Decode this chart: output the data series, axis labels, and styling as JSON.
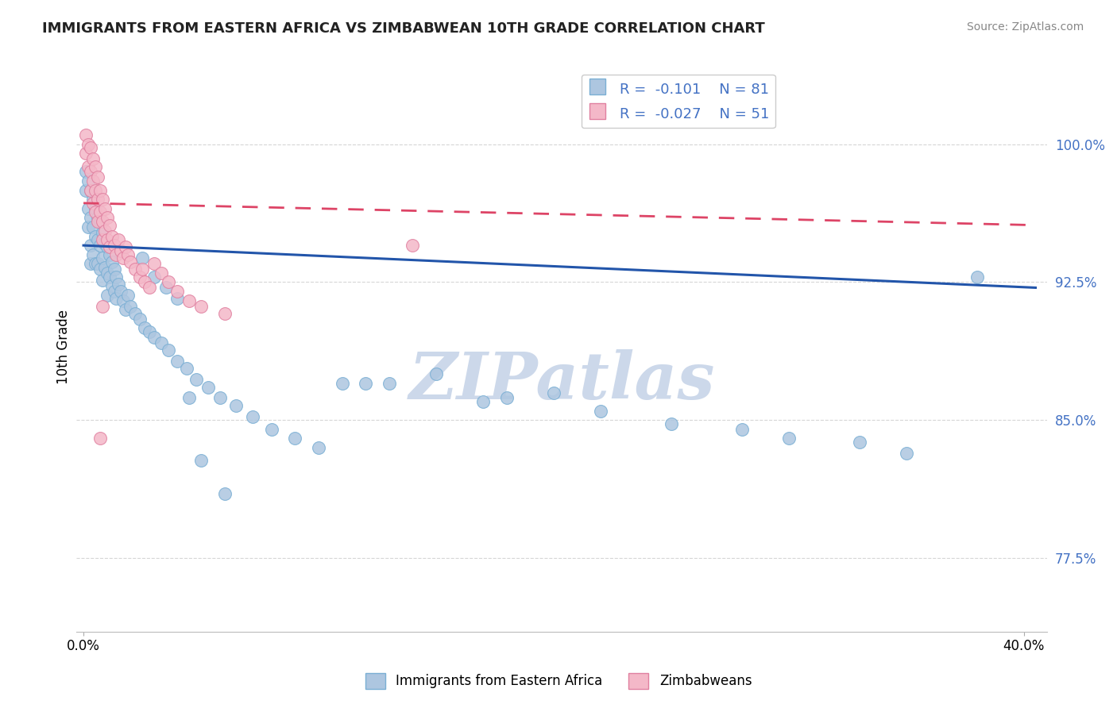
{
  "title": "IMMIGRANTS FROM EASTERN AFRICA VS ZIMBABWEAN 10TH GRADE CORRELATION CHART",
  "source": "Source: ZipAtlas.com",
  "ylabel": "10th Grade",
  "yticks": [
    0.775,
    0.85,
    0.925,
    1.0
  ],
  "ytick_labels": [
    "77.5%",
    "85.0%",
    "92.5%",
    "100.0%"
  ],
  "xlim": [
    -0.003,
    0.41
  ],
  "ylim": [
    0.735,
    1.045
  ],
  "blue_R": -0.101,
  "blue_N": 81,
  "pink_R": -0.027,
  "pink_N": 51,
  "blue_color": "#adc6e0",
  "blue_edge": "#7aafd4",
  "pink_color": "#f4b8c8",
  "pink_edge": "#e080a0",
  "blue_line_color": "#2255aa",
  "pink_line_color": "#dd4466",
  "watermark": "ZIPatlas",
  "watermark_color": "#ccd8ea",
  "legend_label_blue": "Immigrants from Eastern Africa",
  "legend_label_pink": "Zimbabweans",
  "blue_trend_x0": 0.0,
  "blue_trend_x1": 0.405,
  "blue_trend_y0": 0.945,
  "blue_trend_y1": 0.922,
  "pink_trend_x0": 0.0,
  "pink_trend_x1": 0.405,
  "pink_trend_y0": 0.968,
  "pink_trend_y1": 0.956,
  "blue_x": [
    0.001,
    0.001,
    0.002,
    0.002,
    0.002,
    0.003,
    0.003,
    0.003,
    0.003,
    0.004,
    0.004,
    0.004,
    0.005,
    0.005,
    0.005,
    0.006,
    0.006,
    0.006,
    0.007,
    0.007,
    0.007,
    0.008,
    0.008,
    0.008,
    0.009,
    0.009,
    0.01,
    0.01,
    0.01,
    0.011,
    0.011,
    0.012,
    0.012,
    0.013,
    0.013,
    0.014,
    0.014,
    0.015,
    0.016,
    0.017,
    0.018,
    0.019,
    0.02,
    0.022,
    0.024,
    0.026,
    0.028,
    0.03,
    0.033,
    0.036,
    0.04,
    0.044,
    0.048,
    0.053,
    0.058,
    0.065,
    0.072,
    0.08,
    0.09,
    0.1,
    0.11,
    0.13,
    0.15,
    0.18,
    0.22,
    0.28,
    0.33,
    0.38,
    0.025,
    0.03,
    0.035,
    0.04,
    0.045,
    0.12,
    0.2,
    0.25,
    0.3,
    0.35,
    0.17,
    0.05,
    0.06
  ],
  "blue_y": [
    0.985,
    0.975,
    0.98,
    0.965,
    0.955,
    0.975,
    0.96,
    0.945,
    0.935,
    0.97,
    0.955,
    0.94,
    0.965,
    0.95,
    0.935,
    0.96,
    0.948,
    0.935,
    0.958,
    0.945,
    0.932,
    0.952,
    0.938,
    0.926,
    0.946,
    0.933,
    0.944,
    0.93,
    0.918,
    0.94,
    0.928,
    0.936,
    0.923,
    0.932,
    0.92,
    0.928,
    0.916,
    0.924,
    0.92,
    0.915,
    0.91,
    0.918,
    0.912,
    0.908,
    0.905,
    0.9,
    0.898,
    0.895,
    0.892,
    0.888,
    0.882,
    0.878,
    0.872,
    0.868,
    0.862,
    0.858,
    0.852,
    0.845,
    0.84,
    0.835,
    0.87,
    0.87,
    0.875,
    0.862,
    0.855,
    0.845,
    0.838,
    0.928,
    0.938,
    0.928,
    0.922,
    0.916,
    0.862,
    0.87,
    0.865,
    0.848,
    0.84,
    0.832,
    0.86,
    0.828,
    0.81
  ],
  "pink_x": [
    0.001,
    0.001,
    0.002,
    0.002,
    0.003,
    0.003,
    0.003,
    0.004,
    0.004,
    0.004,
    0.005,
    0.005,
    0.005,
    0.006,
    0.006,
    0.006,
    0.007,
    0.007,
    0.008,
    0.008,
    0.008,
    0.009,
    0.009,
    0.01,
    0.01,
    0.011,
    0.011,
    0.012,
    0.013,
    0.014,
    0.015,
    0.016,
    0.017,
    0.018,
    0.019,
    0.02,
    0.022,
    0.024,
    0.026,
    0.028,
    0.03,
    0.033,
    0.036,
    0.04,
    0.045,
    0.05,
    0.06,
    0.14,
    0.025,
    0.008,
    0.007
  ],
  "pink_y": [
    1.005,
    0.995,
    1.0,
    0.988,
    0.998,
    0.985,
    0.975,
    0.992,
    0.98,
    0.968,
    0.988,
    0.975,
    0.963,
    0.982,
    0.97,
    0.958,
    0.975,
    0.963,
    0.97,
    0.958,
    0.948,
    0.965,
    0.953,
    0.96,
    0.948,
    0.956,
    0.944,
    0.95,
    0.945,
    0.94,
    0.948,
    0.942,
    0.938,
    0.944,
    0.94,
    0.936,
    0.932,
    0.928,
    0.925,
    0.922,
    0.935,
    0.93,
    0.925,
    0.92,
    0.915,
    0.912,
    0.908,
    0.945,
    0.932,
    0.912,
    0.84
  ]
}
